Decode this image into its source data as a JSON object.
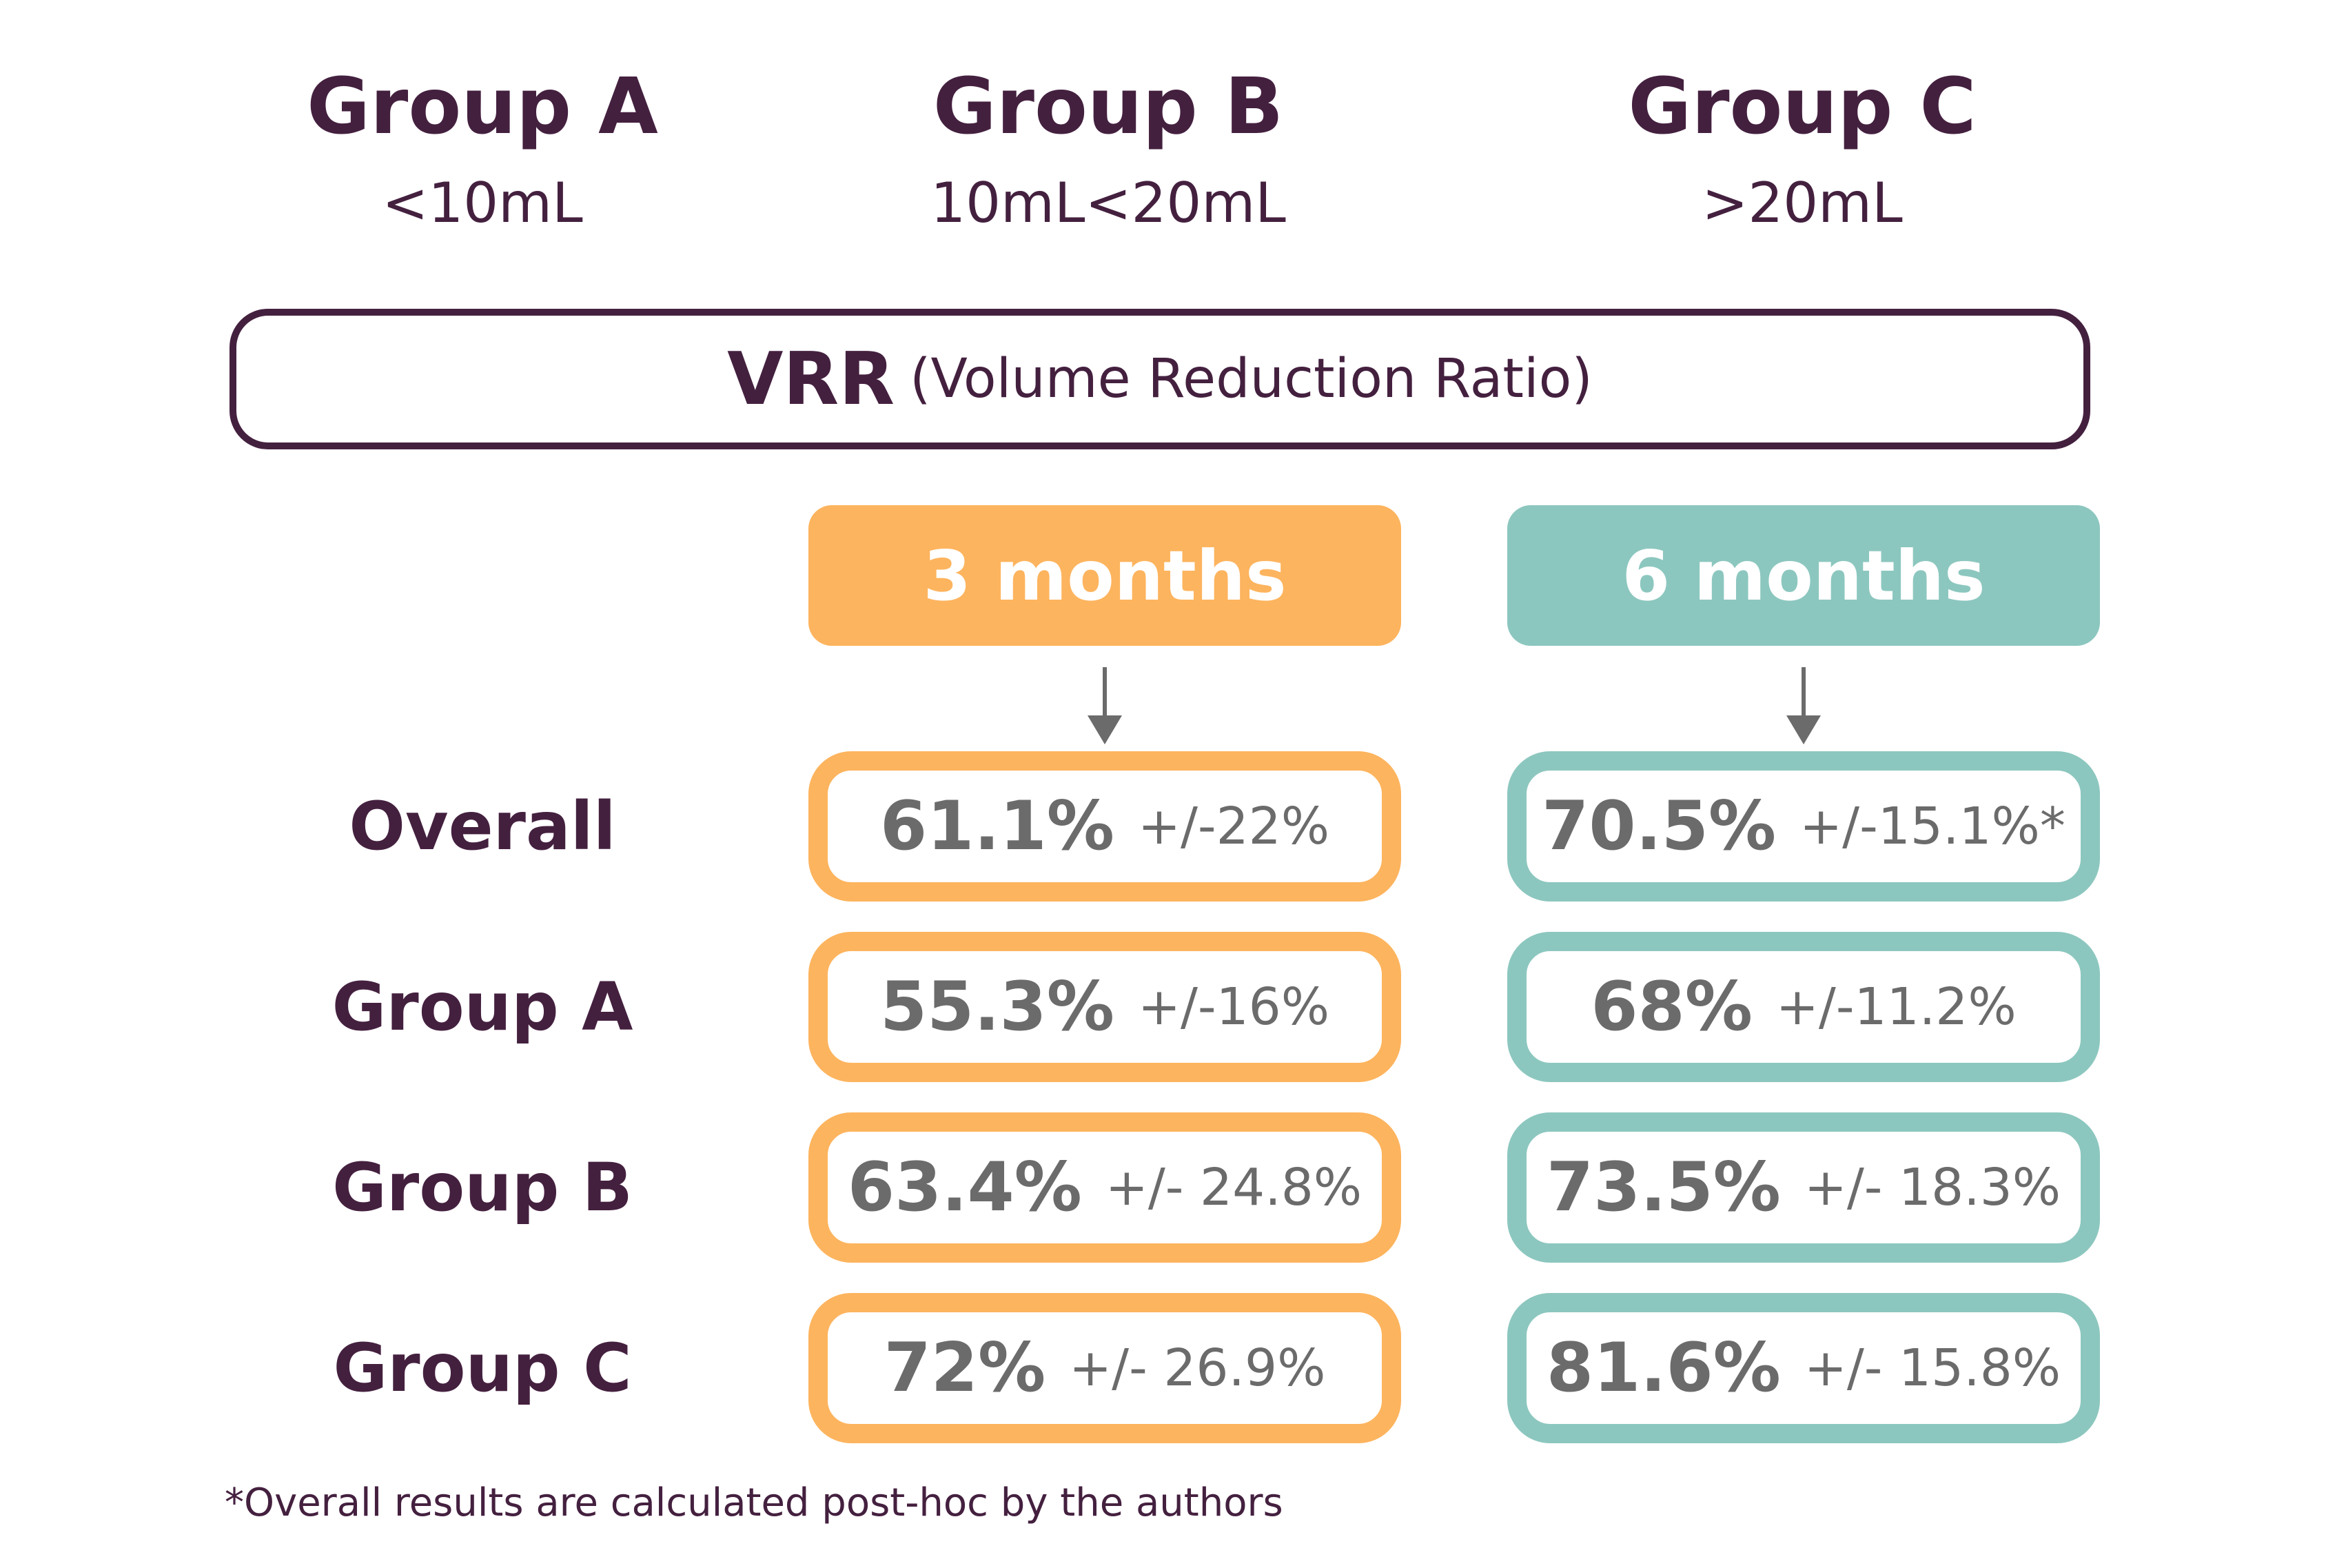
{
  "groups": [
    {
      "name": "Group A",
      "range": "<10mL"
    },
    {
      "name": "Group B",
      "range": "10mL<20mL"
    },
    {
      "name": "Group C",
      "range": ">20mL"
    }
  ],
  "vrr": {
    "abbr": "VRR",
    "full": "(Volume Reduction Ratio)"
  },
  "columns": {
    "three_months": {
      "label": "3 months",
      "color": "#fdb45e"
    },
    "six_months": {
      "label": "6 months",
      "color": "#8cc7bf"
    }
  },
  "rows": [
    {
      "label": "Overall",
      "three_months": {
        "value": "61.1%",
        "sd": "+/-22%"
      },
      "six_months": {
        "value": "70.5%",
        "sd": "+/-15.1%*"
      }
    },
    {
      "label": "Group A",
      "three_months": {
        "value": "55.3%",
        "sd": "+/-16%"
      },
      "six_months": {
        "value": "68%",
        "sd": "+/-11.2%"
      }
    },
    {
      "label": "Group B",
      "three_months": {
        "value": "63.4%",
        "sd": "+/- 24.8%"
      },
      "six_months": {
        "value": "73.5%",
        "sd": "+/- 18.3%"
      }
    },
    {
      "label": "Group C",
      "three_months": {
        "value": "72%",
        "sd": "+/- 26.9%"
      },
      "six_months": {
        "value": "81.6%",
        "sd": "+/- 15.8%"
      }
    }
  ],
  "footnote": "*Overall results are calculated post-hoc by the authors",
  "colors": {
    "text_dark": "#44203f",
    "value_gray": "#6b6b6b"
  }
}
